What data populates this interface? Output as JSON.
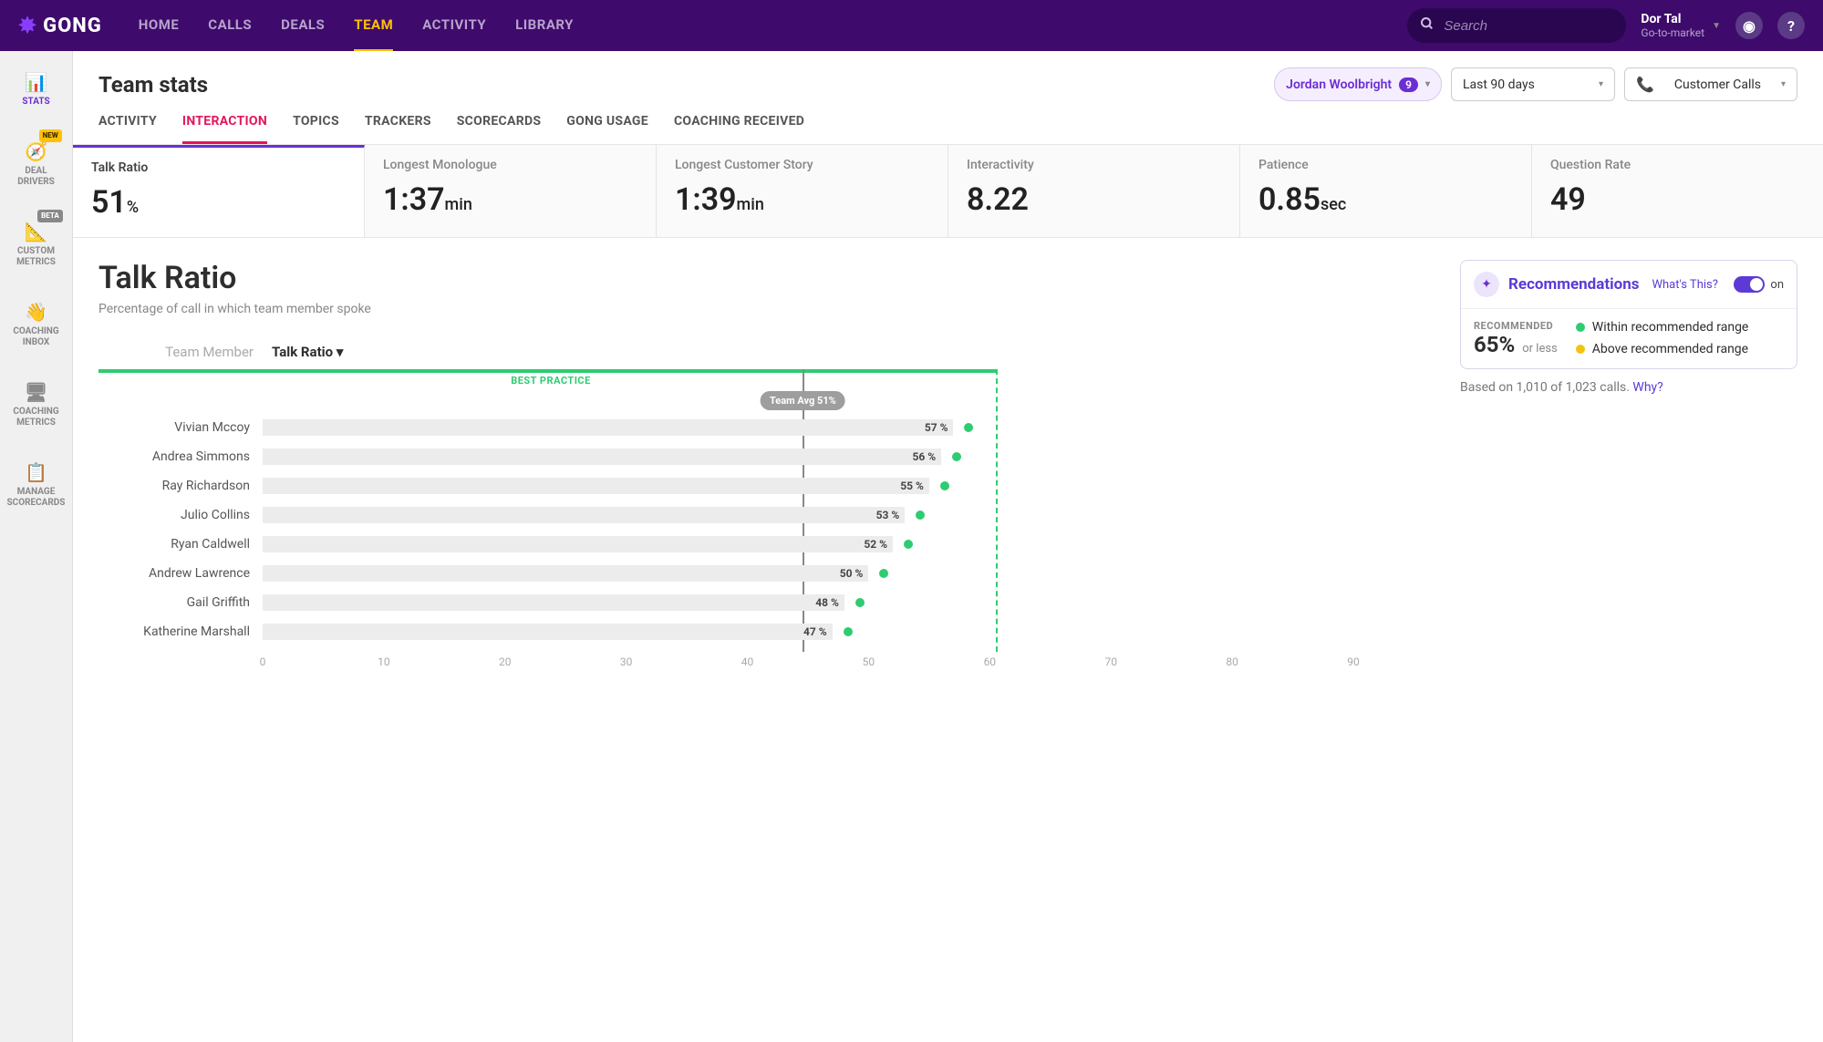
{
  "brand": "GONG",
  "topNav": [
    "HOME",
    "CALLS",
    "DEALS",
    "TEAM",
    "ACTIVITY",
    "LIBRARY"
  ],
  "topNavActive": "TEAM",
  "search": {
    "placeholder": "Search"
  },
  "user": {
    "name": "Dor Tal",
    "sub": "Go-to-market"
  },
  "sidebar": [
    {
      "key": "stats",
      "label": "STATS",
      "icon": "📊",
      "active": true
    },
    {
      "key": "deal-drivers",
      "label": "DEAL\nDRIVERS",
      "icon": "🧭",
      "badge": "NEW"
    },
    {
      "key": "custom-metrics",
      "label": "CUSTOM\nMETRICS",
      "icon": "📐",
      "badge": "BETA"
    },
    {
      "key": "coaching-inbox",
      "label": "COACHING\nINBOX",
      "icon": "👋"
    },
    {
      "key": "coaching-metrics",
      "label": "COACHING\nMETRICS",
      "icon": "🖥"
    },
    {
      "key": "manage-scorecards",
      "label": "MANAGE\nSCORECARDS",
      "icon": "📋"
    }
  ],
  "pageTitle": "Team stats",
  "filters": {
    "person": {
      "name": "Jordan Woolbright",
      "count": 9
    },
    "range": "Last 90 days",
    "callType": "Customer Calls"
  },
  "subtabs": [
    "ACTIVITY",
    "INTERACTION",
    "TOPICS",
    "TRACKERS",
    "SCORECARDS",
    "GONG USAGE",
    "COACHING RECEIVED"
  ],
  "subtabActive": "INTERACTION",
  "metrics": [
    {
      "label": "Talk Ratio",
      "value": "51",
      "unit": "%",
      "active": true
    },
    {
      "label": "Longest Monologue",
      "value": "1:37",
      "unit": "min"
    },
    {
      "label": "Longest Customer Story",
      "value": "1:39",
      "unit": "min"
    },
    {
      "label": "Interactivity",
      "value": "8.22",
      "unit": ""
    },
    {
      "label": "Patience",
      "value": "0.85",
      "unit": "sec"
    },
    {
      "label": "Question Rate",
      "value": "49",
      "unit": ""
    }
  ],
  "section": {
    "title": "Talk Ratio",
    "sub": "Percentage of call in which team member spoke"
  },
  "reco": {
    "title": "Recommendations",
    "whats": "What's This?",
    "toggle": "on",
    "recommendedLabel": "RECOMMENDED",
    "pct": "65%",
    "orless": "or less",
    "legend": [
      {
        "color": "#2ecc71",
        "text": "Within recommended range"
      },
      {
        "color": "#f1c40f",
        "text": "Above recommended range"
      }
    ],
    "basedOn": "Based on 1,010 of 1,023 calls.",
    "why": "Why?"
  },
  "chart": {
    "headers": {
      "teamMember": "Team Member",
      "talkRatio": "Talk Ratio"
    },
    "bestPracticeLabel": "BEST PRACTICE",
    "bestPracticeMax": 65,
    "teamAvg": {
      "value": 51,
      "label": "Team Avg 51%"
    },
    "xTicks": [
      0,
      10,
      20,
      30,
      40,
      50,
      60,
      70,
      80,
      90
    ],
    "xMax": 97,
    "rows": [
      {
        "name": "Vivian Mccoy",
        "value": 57,
        "display": "57 %",
        "dotColor": "#2ecc71"
      },
      {
        "name": "Andrea Simmons",
        "value": 56,
        "display": "56 %",
        "dotColor": "#2ecc71"
      },
      {
        "name": "Ray Richardson",
        "value": 55,
        "display": "55 %",
        "dotColor": "#2ecc71"
      },
      {
        "name": "Julio Collins",
        "value": 53,
        "display": "53 %",
        "dotColor": "#2ecc71"
      },
      {
        "name": "Ryan Caldwell",
        "value": 52,
        "display": "52 %",
        "dotColor": "#2ecc71"
      },
      {
        "name": "Andrew Lawrence",
        "value": 50,
        "display": "50 %",
        "dotColor": "#2ecc71"
      },
      {
        "name": "Gail Griffith",
        "value": 48,
        "display": "48 %",
        "dotColor": "#2ecc71"
      },
      {
        "name": "Katherine Marshall",
        "value": 47,
        "display": "47 %",
        "dotColor": "#2ecc71"
      }
    ],
    "colors": {
      "barFill": "#ececec",
      "avgLine": "#888888",
      "bestPractice": "#2ecc71"
    }
  }
}
